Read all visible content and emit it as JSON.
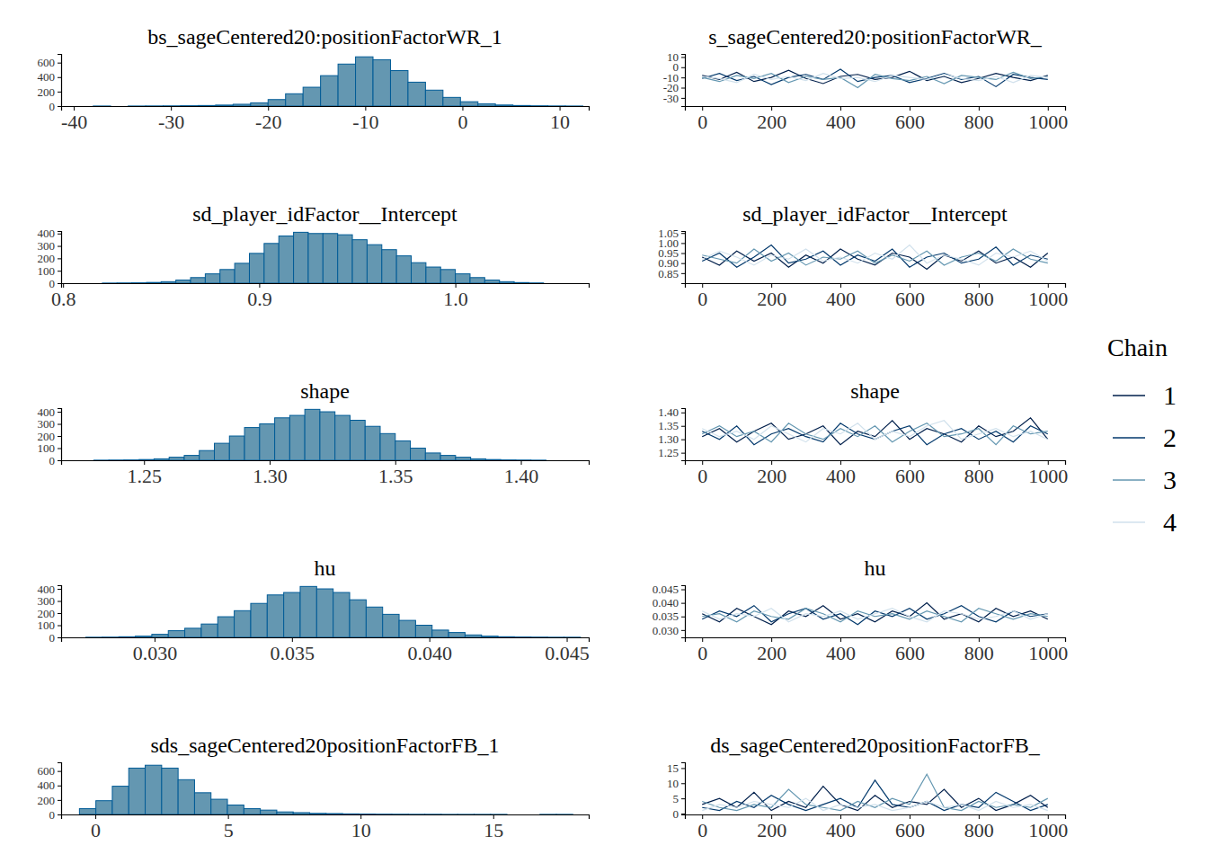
{
  "chart_data": [
    {
      "type": "histogram",
      "title": "bs_sageCentered20:positionFactorWR_1",
      "color": "#6497b1",
      "bins": [
        -38,
        -36.2,
        -34.4,
        -32.6,
        -30.8,
        -29,
        -27.2,
        -25.4,
        -23.6,
        -21.8,
        -20,
        -18.2,
        -16.4,
        -14.6,
        -12.8,
        -11,
        -9.2,
        -7.4,
        -5.6,
        -3.8,
        -2,
        -0.2,
        1.6,
        3.4,
        5.2,
        7,
        8.8,
        10.6,
        12.4
      ],
      "counts": [
        1,
        0,
        1,
        2,
        3,
        5,
        8,
        14,
        25,
        45,
        90,
        170,
        260,
        420,
        580,
        680,
        640,
        490,
        330,
        220,
        120,
        60,
        30,
        15,
        8,
        4,
        2,
        1
      ],
      "xlim": [
        -41.3,
        13
      ],
      "xticks": [
        -40,
        -30,
        -20,
        -10,
        0,
        10
      ],
      "ylim": [
        0,
        720
      ],
      "yticks": [
        0,
        200,
        400,
        600
      ]
    },
    {
      "type": "line",
      "title": "s_sageCentered20:positionFactorWR_",
      "legend": "right",
      "legend_title": "Chain",
      "x": [
        0,
        50,
        100,
        150,
        200,
        250,
        300,
        350,
        400,
        450,
        500,
        550,
        600,
        650,
        700,
        750,
        800,
        850,
        900,
        950,
        1000
      ],
      "series": [
        {
          "name": "1",
          "color": "#011f4b",
          "values": [
            -8,
            -12,
            -5,
            -14,
            -10,
            -3,
            -11,
            -16,
            -9,
            -7,
            -12,
            -10,
            -4,
            -13,
            -9,
            -15,
            -11,
            -6,
            -10,
            -13,
            -8
          ]
        },
        {
          "name": "2",
          "color": "#03396c",
          "values": [
            -11,
            -6,
            -13,
            -9,
            -17,
            -10,
            -7,
            -12,
            -2,
            -14,
            -10,
            -8,
            -15,
            -11,
            -6,
            -12,
            -9,
            -19,
            -7,
            -10,
            -12
          ]
        },
        {
          "name": "3",
          "color": "#6497b1",
          "values": [
            -10,
            -14,
            -8,
            -11,
            -6,
            -15,
            -9,
            -12,
            -10,
            -20,
            -7,
            -11,
            -13,
            -9,
            -16,
            -8,
            -10,
            -12,
            -5,
            -11,
            -9
          ]
        },
        {
          "name": "4",
          "color": "#d1e1ec",
          "values": [
            -9,
            -11,
            -15,
            -7,
            -12,
            -9,
            -13,
            -6,
            -11,
            -10,
            -14,
            -8,
            -10,
            -12,
            -7,
            -11,
            -13,
            -9,
            -15,
            -8,
            -10
          ]
        }
      ],
      "xlim": [
        -50,
        1050
      ],
      "xticks": [
        0,
        200,
        400,
        600,
        800,
        1000
      ],
      "ylim": [
        -38,
        13
      ],
      "yticks": [
        -30,
        -20,
        -10,
        0,
        10
      ]
    },
    {
      "type": "histogram",
      "title": "sd_player_idFactor__Intercept",
      "color": "#6497b1",
      "bins": [
        0.82,
        0.8275,
        0.835,
        0.8425,
        0.85,
        0.8575,
        0.865,
        0.8725,
        0.88,
        0.8875,
        0.895,
        0.9025,
        0.91,
        0.9175,
        0.925,
        0.9325,
        0.94,
        0.9475,
        0.955,
        0.9625,
        0.97,
        0.9775,
        0.985,
        0.9925,
        1,
        1.0075,
        1.015,
        1.0225,
        1.03,
        1.0375,
        1.045
      ],
      "counts": [
        1,
        2,
        3,
        6,
        12,
        25,
        45,
        75,
        110,
        160,
        240,
        320,
        380,
        410,
        400,
        400,
        390,
        350,
        310,
        270,
        220,
        165,
        130,
        110,
        75,
        45,
        25,
        12,
        5,
        2
      ],
      "xlim": [
        0.799,
        1.068
      ],
      "xticks": [
        0.8,
        0.9,
        {
          "value": 1,
          "label": "1.0"
        }
      ],
      "ylim": [
        0,
        420
      ],
      "yticks": [
        0,
        100,
        200,
        300,
        400
      ]
    },
    {
      "type": "line",
      "title": "sd_player_idFactor__Intercept",
      "x": [
        0,
        50,
        100,
        150,
        200,
        250,
        300,
        350,
        400,
        450,
        500,
        550,
        600,
        650,
        700,
        750,
        800,
        850,
        900,
        950,
        1000
      ],
      "series": [
        {
          "color": "#011f4b",
          "values": [
            0.93,
            0.89,
            0.96,
            0.91,
            0.95,
            0.88,
            0.94,
            0.9,
            0.97,
            0.92,
            0.89,
            0.95,
            0.93,
            0.87,
            0.94,
            0.91,
            0.96,
            0.9,
            0.93,
            0.88,
            0.95
          ]
        },
        {
          "color": "#03396c",
          "values": [
            0.91,
            0.95,
            0.88,
            0.93,
            0.99,
            0.9,
            0.92,
            0.96,
            0.89,
            0.94,
            0.91,
            0.97,
            0.88,
            0.93,
            0.95,
            0.9,
            0.92,
            0.98,
            0.89,
            0.94,
            0.92
          ]
        },
        {
          "color": "#6497b1",
          "values": [
            0.94,
            0.92,
            0.9,
            0.97,
            0.91,
            0.95,
            0.89,
            0.93,
            0.92,
            0.96,
            0.9,
            0.94,
            0.91,
            0.96,
            0.89,
            0.93,
            0.95,
            0.91,
            0.97,
            0.92,
            0.9
          ]
        },
        {
          "color": "#d1e1ec",
          "values": [
            0.92,
            0.96,
            0.93,
            0.89,
            0.94,
            0.92,
            0.97,
            0.91,
            0.93,
            0.9,
            0.95,
            0.92,
            0.99,
            0.9,
            0.94,
            0.92,
            0.89,
            0.95,
            0.93,
            0.96,
            0.91
          ]
        }
      ],
      "xlim": [
        -50,
        1050
      ],
      "xticks": [
        0,
        200,
        400,
        600,
        800,
        1000
      ],
      "ylim": [
        0.8,
        1.06
      ],
      "yticks": [
        0.85,
        {
          "value": 0.9,
          "label": "0.90"
        },
        0.95,
        {
          "value": 1,
          "label": "1.00"
        },
        1.05
      ]
    },
    {
      "type": "histogram",
      "title": "shape",
      "color": "#6497b1",
      "bins": [
        1.23,
        1.236,
        1.242,
        1.248,
        1.254,
        1.26,
        1.266,
        1.272,
        1.278,
        1.284,
        1.29,
        1.296,
        1.302,
        1.308,
        1.314,
        1.32,
        1.326,
        1.332,
        1.338,
        1.344,
        1.35,
        1.356,
        1.362,
        1.368,
        1.374,
        1.38,
        1.386,
        1.392,
        1.398,
        1.404,
        1.41
      ],
      "counts": [
        1,
        2,
        3,
        6,
        12,
        25,
        40,
        80,
        140,
        200,
        270,
        300,
        350,
        370,
        420,
        400,
        370,
        330,
        280,
        220,
        160,
        100,
        60,
        40,
        25,
        12,
        6,
        3,
        2,
        1
      ],
      "xlim": [
        1.217,
        1.427
      ],
      "xticks": [
        1.25,
        {
          "value": 1.3,
          "label": "1.30"
        },
        1.35,
        {
          "value": 1.4,
          "label": "1.40"
        }
      ],
      "ylim": [
        0,
        430
      ],
      "yticks": [
        0,
        100,
        200,
        300,
        400
      ]
    },
    {
      "type": "line",
      "title": "shape",
      "x": [
        0,
        50,
        100,
        150,
        200,
        250,
        300,
        350,
        400,
        450,
        500,
        550,
        600,
        650,
        700,
        750,
        800,
        850,
        900,
        950,
        1000
      ],
      "series": [
        {
          "color": "#011f4b",
          "values": [
            1.31,
            1.34,
            1.29,
            1.33,
            1.36,
            1.3,
            1.32,
            1.35,
            1.28,
            1.33,
            1.31,
            1.37,
            1.3,
            1.34,
            1.32,
            1.29,
            1.35,
            1.31,
            1.33,
            1.38,
            1.3
          ]
        },
        {
          "color": "#03396c",
          "values": [
            1.33,
            1.3,
            1.35,
            1.28,
            1.32,
            1.34,
            1.31,
            1.29,
            1.36,
            1.32,
            1.3,
            1.33,
            1.35,
            1.28,
            1.32,
            1.34,
            1.3,
            1.33,
            1.29,
            1.35,
            1.32
          ]
        },
        {
          "color": "#6497b1",
          "values": [
            1.32,
            1.35,
            1.31,
            1.33,
            1.29,
            1.36,
            1.32,
            1.3,
            1.34,
            1.31,
            1.35,
            1.29,
            1.33,
            1.36,
            1.31,
            1.32,
            1.34,
            1.28,
            1.35,
            1.32,
            1.33
          ]
        },
        {
          "color": "#d1e1ec",
          "values": [
            1.34,
            1.31,
            1.33,
            1.3,
            1.35,
            1.32,
            1.29,
            1.34,
            1.32,
            1.36,
            1.3,
            1.33,
            1.31,
            1.35,
            1.37,
            1.3,
            1.32,
            1.34,
            1.31,
            1.33,
            1.3
          ]
        }
      ],
      "xlim": [
        -50,
        1050
      ],
      "xticks": [
        0,
        200,
        400,
        600,
        800,
        1000
      ],
      "ylim": [
        1.222,
        1.416
      ],
      "yticks": [
        1.25,
        {
          "value": 1.3,
          "label": "1.30"
        },
        1.35,
        {
          "value": 1.4,
          "label": "1.40"
        }
      ]
    },
    {
      "type": "histogram",
      "title": "hu",
      "color": "#6497b1",
      "bins": [
        0.0275,
        0.0281,
        0.0287,
        0.0293,
        0.0299,
        0.0305,
        0.0311,
        0.0317,
        0.0323,
        0.0329,
        0.0335,
        0.0341,
        0.0347,
        0.0353,
        0.0359,
        0.0365,
        0.0371,
        0.0377,
        0.0383,
        0.0389,
        0.0395,
        0.0401,
        0.0407,
        0.0413,
        0.0419,
        0.0425,
        0.0431,
        0.0437,
        0.0443,
        0.0449,
        0.0455
      ],
      "counts": [
        1,
        2,
        5,
        10,
        25,
        55,
        75,
        110,
        170,
        220,
        280,
        350,
        370,
        420,
        400,
        370,
        310,
        250,
        190,
        140,
        100,
        60,
        40,
        20,
        10,
        5,
        3,
        2,
        1,
        1
      ],
      "xlim": [
        0.0266,
        0.0458
      ],
      "xticks": [
        {
          "value": 0.03,
          "label": "0.030"
        },
        0.035,
        {
          "value": 0.04,
          "label": "0.040"
        },
        0.045
      ],
      "ylim": [
        0,
        430
      ],
      "yticks": [
        0,
        100,
        200,
        300,
        400
      ]
    },
    {
      "type": "line",
      "title": "hu",
      "x": [
        0,
        50,
        100,
        150,
        200,
        250,
        300,
        350,
        400,
        450,
        500,
        550,
        600,
        650,
        700,
        750,
        800,
        850,
        900,
        950,
        1000
      ],
      "series": [
        {
          "color": "#011f4b",
          "values": [
            0.036,
            0.033,
            0.038,
            0.035,
            0.032,
            0.037,
            0.035,
            0.039,
            0.034,
            0.036,
            0.033,
            0.037,
            0.035,
            0.04,
            0.034,
            0.036,
            0.033,
            0.038,
            0.035,
            0.037,
            0.034
          ]
        },
        {
          "color": "#03396c",
          "values": [
            0.034,
            0.037,
            0.035,
            0.039,
            0.033,
            0.036,
            0.038,
            0.034,
            0.036,
            0.032,
            0.037,
            0.035,
            0.038,
            0.034,
            0.036,
            0.039,
            0.035,
            0.033,
            0.037,
            0.035,
            0.036
          ]
        },
        {
          "color": "#6497b1",
          "values": [
            0.035,
            0.036,
            0.033,
            0.037,
            0.035,
            0.034,
            0.038,
            0.036,
            0.033,
            0.037,
            0.035,
            0.036,
            0.034,
            0.037,
            0.035,
            0.033,
            0.038,
            0.036,
            0.034,
            0.036,
            0.035
          ]
        },
        {
          "color": "#d1e1ec",
          "values": [
            0.037,
            0.034,
            0.036,
            0.035,
            0.038,
            0.033,
            0.036,
            0.035,
            0.037,
            0.034,
            0.036,
            0.038,
            0.035,
            0.033,
            0.037,
            0.036,
            0.034,
            0.035,
            0.037,
            0.034,
            0.036
          ]
        }
      ],
      "xlim": [
        -50,
        1050
      ],
      "xticks": [
        0,
        200,
        400,
        600,
        800,
        1000
      ],
      "ylim": [
        0.0273,
        0.0465
      ],
      "yticks": [
        {
          "value": 0.03,
          "label": "0.030"
        },
        0.035,
        {
          "value": 0.04,
          "label": "0.040"
        },
        0.045
      ]
    },
    {
      "type": "histogram",
      "title": "sds_sageCentered20positionFactorFB_1",
      "color": "#6497b1",
      "bins": [
        -0.6,
        0.02,
        0.64,
        1.26,
        1.88,
        2.5,
        3.12,
        3.74,
        4.36,
        4.98,
        5.6,
        6.22,
        6.84,
        7.46,
        8.08,
        8.7,
        9.32,
        9.94,
        10.56,
        11.18,
        11.8,
        12.42,
        13.04,
        13.66,
        14.28,
        14.9,
        15.52,
        16.14,
        16.76,
        17.38,
        18.0
      ],
      "counts": [
        80,
        190,
        390,
        640,
        680,
        640,
        480,
        300,
        210,
        130,
        80,
        60,
        35,
        25,
        15,
        12,
        8,
        6,
        4,
        3,
        2,
        2,
        1,
        1,
        1,
        1,
        0,
        0,
        1,
        1
      ],
      "xlim": [
        -1.29,
        18.6
      ],
      "xticks": [
        0,
        5,
        10,
        15
      ],
      "ylim": [
        0,
        720
      ],
      "yticks": [
        0,
        200,
        400,
        600
      ]
    },
    {
      "type": "line",
      "title": "ds_sageCentered20positionFactorFB_",
      "x": [
        0,
        50,
        100,
        150,
        200,
        250,
        300,
        350,
        400,
        450,
        500,
        550,
        600,
        650,
        700,
        750,
        800,
        850,
        900,
        950,
        1000
      ],
      "series": [
        {
          "color": "#011f4b",
          "values": [
            3,
            5,
            2,
            7,
            1,
            4,
            2,
            9,
            3,
            1,
            6,
            2,
            4,
            3,
            8,
            2,
            5,
            1,
            3,
            6,
            2
          ]
        },
        {
          "color": "#03396c",
          "values": [
            2,
            1,
            4,
            2,
            6,
            3,
            1,
            3,
            5,
            2,
            11,
            3,
            2,
            4,
            1,
            3,
            2,
            7,
            4,
            1,
            3
          ]
        },
        {
          "color": "#6497b1",
          "values": [
            4,
            2,
            1,
            3,
            2,
            8,
            3,
            2,
            1,
            4,
            2,
            5,
            3,
            13,
            2,
            1,
            4,
            2,
            3,
            2,
            5
          ]
        },
        {
          "color": "#d1e1ec",
          "values": [
            1,
            3,
            2,
            4,
            3,
            2,
            5,
            1,
            3,
            2,
            3,
            1,
            2,
            4,
            2,
            3,
            1,
            4,
            2,
            3,
            1
          ]
        }
      ],
      "xlim": [
        -50,
        1050
      ],
      "xticks": [
        0,
        200,
        400,
        600,
        800,
        1000
      ],
      "ylim": [
        -0.3,
        16.9
      ],
      "yticks": [
        0,
        5,
        10,
        15
      ]
    }
  ]
}
